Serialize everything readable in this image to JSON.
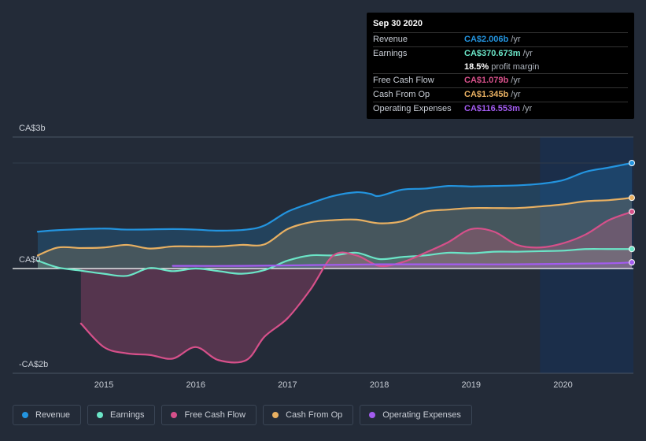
{
  "chart_data": {
    "type": "area",
    "title": "",
    "xlabel": "",
    "ylabel": "",
    "y_unit": "CA$ billions",
    "ylim": [
      -2.0,
      2.5
    ],
    "x_range": [
      2014.28,
      2020.75
    ],
    "x_ticks": [
      2015,
      2016,
      2017,
      2018,
      2019,
      2020
    ],
    "x_tick_labels": [
      "2015",
      "2016",
      "2017",
      "2018",
      "2019",
      "2020"
    ],
    "y_tick_labels": [
      {
        "value": 2.5,
        "label": "CA$3b"
      },
      {
        "value": 0,
        "label": "CA$0"
      },
      {
        "value": -2.0,
        "label": "-CA$2b"
      }
    ],
    "forecast_start": 2019.75,
    "series": [
      {
        "name": "Revenue",
        "color": "#2394df",
        "points": [
          [
            2014.28,
            0.7
          ],
          [
            2014.5,
            0.73
          ],
          [
            2015.0,
            0.76
          ],
          [
            2015.25,
            0.74
          ],
          [
            2015.75,
            0.75
          ],
          [
            2016.0,
            0.74
          ],
          [
            2016.25,
            0.72
          ],
          [
            2016.55,
            0.74
          ],
          [
            2016.75,
            0.82
          ],
          [
            2017.0,
            1.08
          ],
          [
            2017.25,
            1.24
          ],
          [
            2017.5,
            1.38
          ],
          [
            2017.75,
            1.45
          ],
          [
            2017.9,
            1.42
          ],
          [
            2018.0,
            1.38
          ],
          [
            2018.25,
            1.5
          ],
          [
            2018.5,
            1.52
          ],
          [
            2018.75,
            1.57
          ],
          [
            2019.0,
            1.56
          ],
          [
            2019.25,
            1.57
          ],
          [
            2019.5,
            1.58
          ],
          [
            2019.75,
            1.61
          ],
          [
            2020.0,
            1.68
          ],
          [
            2020.25,
            1.84
          ],
          [
            2020.5,
            1.92
          ],
          [
            2020.75,
            2.006
          ]
        ]
      },
      {
        "name": "Earnings",
        "color": "#6be5c7",
        "points": [
          [
            2014.28,
            0.15
          ],
          [
            2014.5,
            0.02
          ],
          [
            2014.75,
            -0.04
          ],
          [
            2015.0,
            -0.1
          ],
          [
            2015.25,
            -0.14
          ],
          [
            2015.5,
            0.01
          ],
          [
            2015.75,
            -0.05
          ],
          [
            2016.0,
            0.0
          ],
          [
            2016.25,
            -0.05
          ],
          [
            2016.5,
            -0.1
          ],
          [
            2016.75,
            -0.03
          ],
          [
            2017.0,
            0.15
          ],
          [
            2017.25,
            0.25
          ],
          [
            2017.5,
            0.25
          ],
          [
            2017.75,
            0.3
          ],
          [
            2018.0,
            0.18
          ],
          [
            2018.25,
            0.22
          ],
          [
            2018.5,
            0.25
          ],
          [
            2018.75,
            0.3
          ],
          [
            2019.0,
            0.29
          ],
          [
            2019.25,
            0.32
          ],
          [
            2019.5,
            0.32
          ],
          [
            2019.75,
            0.33
          ],
          [
            2020.0,
            0.34
          ],
          [
            2020.25,
            0.37
          ],
          [
            2020.5,
            0.37
          ],
          [
            2020.75,
            0.371
          ]
        ]
      },
      {
        "name": "Free Cash Flow",
        "color": "#d6508a",
        "points": [
          [
            2014.75,
            -1.05
          ],
          [
            2015.0,
            -1.5
          ],
          [
            2015.25,
            -1.62
          ],
          [
            2015.5,
            -1.65
          ],
          [
            2015.75,
            -1.72
          ],
          [
            2016.0,
            -1.5
          ],
          [
            2016.25,
            -1.75
          ],
          [
            2016.55,
            -1.75
          ],
          [
            2016.75,
            -1.3
          ],
          [
            2017.0,
            -0.95
          ],
          [
            2017.25,
            -0.4
          ],
          [
            2017.5,
            0.25
          ],
          [
            2017.75,
            0.25
          ],
          [
            2018.0,
            0.05
          ],
          [
            2018.25,
            0.12
          ],
          [
            2018.5,
            0.3
          ],
          [
            2018.75,
            0.5
          ],
          [
            2019.0,
            0.75
          ],
          [
            2019.25,
            0.7
          ],
          [
            2019.5,
            0.45
          ],
          [
            2019.75,
            0.4
          ],
          [
            2020.0,
            0.48
          ],
          [
            2020.25,
            0.65
          ],
          [
            2020.5,
            0.92
          ],
          [
            2020.75,
            1.079
          ]
        ]
      },
      {
        "name": "Cash From Op",
        "color": "#e8b062",
        "points": [
          [
            2014.28,
            0.25
          ],
          [
            2014.5,
            0.4
          ],
          [
            2014.75,
            0.39
          ],
          [
            2015.0,
            0.4
          ],
          [
            2015.25,
            0.45
          ],
          [
            2015.5,
            0.38
          ],
          [
            2015.75,
            0.42
          ],
          [
            2016.0,
            0.42
          ],
          [
            2016.25,
            0.42
          ],
          [
            2016.5,
            0.45
          ],
          [
            2016.75,
            0.46
          ],
          [
            2017.0,
            0.75
          ],
          [
            2017.25,
            0.88
          ],
          [
            2017.5,
            0.92
          ],
          [
            2017.75,
            0.93
          ],
          [
            2018.0,
            0.86
          ],
          [
            2018.25,
            0.9
          ],
          [
            2018.5,
            1.08
          ],
          [
            2018.75,
            1.12
          ],
          [
            2019.0,
            1.15
          ],
          [
            2019.25,
            1.15
          ],
          [
            2019.5,
            1.15
          ],
          [
            2019.75,
            1.18
          ],
          [
            2020.0,
            1.22
          ],
          [
            2020.25,
            1.28
          ],
          [
            2020.5,
            1.3
          ],
          [
            2020.75,
            1.345
          ]
        ]
      },
      {
        "name": "Operating Expenses",
        "color": "#a35cf0",
        "points": [
          [
            2015.75,
            0.05
          ],
          [
            2016.0,
            0.05
          ],
          [
            2016.5,
            0.05
          ],
          [
            2017.0,
            0.06
          ],
          [
            2017.5,
            0.07
          ],
          [
            2018.0,
            0.08
          ],
          [
            2018.5,
            0.08
          ],
          [
            2019.0,
            0.08
          ],
          [
            2019.5,
            0.08
          ],
          [
            2020.0,
            0.09
          ],
          [
            2020.5,
            0.1
          ],
          [
            2020.75,
            0.117
          ]
        ]
      }
    ]
  },
  "tooltip": {
    "date": "Sep 30 2020",
    "rows": [
      {
        "label": "Revenue",
        "value": "CA$2.006b",
        "unit": "/yr",
        "color": "#2394df"
      },
      {
        "label": "Earnings",
        "value": "CA$370.673m",
        "unit": "/yr",
        "color": "#6be5c7"
      },
      {
        "label": "",
        "value": "18.5%",
        "unit": "profit margin",
        "color": "#ffffff"
      },
      {
        "label": "Free Cash Flow",
        "value": "CA$1.079b",
        "unit": "/yr",
        "color": "#d6508a"
      },
      {
        "label": "Cash From Op",
        "value": "CA$1.345b",
        "unit": "/yr",
        "color": "#e8b062"
      },
      {
        "label": "Operating Expenses",
        "value": "CA$116.553m",
        "unit": "/yr",
        "color": "#a35cf0"
      }
    ]
  },
  "legend": [
    {
      "label": "Revenue",
      "color": "#2394df"
    },
    {
      "label": "Earnings",
      "color": "#6be5c7"
    },
    {
      "label": "Free Cash Flow",
      "color": "#d6508a"
    },
    {
      "label": "Cash From Op",
      "color": "#e8b062"
    },
    {
      "label": "Operating Expenses",
      "color": "#a35cf0"
    }
  ]
}
